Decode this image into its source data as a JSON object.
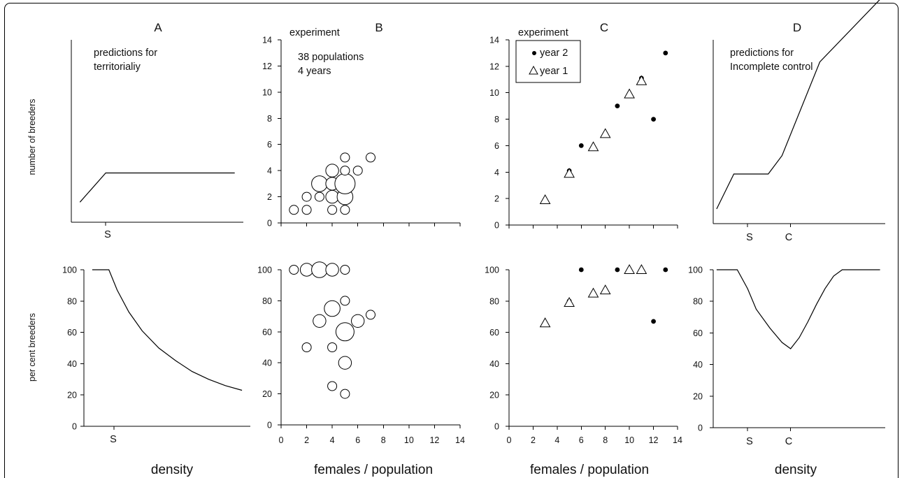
{
  "chart_data": [
    {
      "id": "A_top",
      "panel_label": "A",
      "type": "line",
      "ylabel": "number of breeders",
      "annotation": [
        "predictions for",
        "territorialiy"
      ],
      "marker_labels": [
        "S"
      ],
      "series": [
        {
          "name": "",
          "points": [
            [
              0.05,
              0.11
            ],
            [
              0.2,
              0.27
            ],
            [
              0.95,
              0.27
            ]
          ]
        }
      ]
    },
    {
      "id": "B_top",
      "panel_label": "B",
      "type": "scatter",
      "xlim": [
        0,
        14
      ],
      "ylim": [
        0,
        14
      ],
      "yticks": [
        "0",
        "2",
        "4",
        "6",
        "8",
        "10",
        "12",
        "14"
      ],
      "annotation": [
        "experiment",
        "38 populations",
        "4 years"
      ],
      "points": [
        [
          1,
          1,
          1
        ],
        [
          2,
          1,
          1
        ],
        [
          2,
          2,
          1
        ],
        [
          3,
          2,
          1
        ],
        [
          4,
          1,
          1
        ],
        [
          5,
          1,
          1
        ],
        [
          4,
          2,
          2
        ],
        [
          5,
          2,
          3
        ],
        [
          3,
          3,
          3
        ],
        [
          4,
          3,
          2
        ],
        [
          5,
          3,
          5
        ],
        [
          4,
          4,
          2
        ],
        [
          5,
          4,
          1
        ],
        [
          6,
          4,
          1
        ],
        [
          5,
          5,
          1
        ],
        [
          7,
          5,
          1
        ]
      ]
    },
    {
      "id": "C_top",
      "panel_label": "C",
      "type": "scatter",
      "xlim": [
        0,
        14
      ],
      "ylim": [
        0,
        14
      ],
      "yticks": [
        "0",
        "2",
        "4",
        "6",
        "8",
        "10",
        "12",
        "14"
      ],
      "annotation": [
        "experiment"
      ],
      "legend": {
        "placement": "top-left",
        "entries": [
          "year 2",
          "year 1"
        ]
      },
      "series": [
        {
          "name": "year 2",
          "marker": "dot",
          "points": [
            [
              5,
              4.1
            ],
            [
              6,
              6
            ],
            [
              9,
              9
            ],
            [
              11,
              11.1
            ],
            [
              12,
              8
            ],
            [
              13,
              13
            ]
          ]
        },
        {
          "name": "year 1",
          "marker": "triangle",
          "points": [
            [
              3,
              1.9
            ],
            [
              5,
              3.9
            ],
            [
              7,
              5.9
            ],
            [
              8,
              6.9
            ],
            [
              10,
              9.9
            ],
            [
              11,
              10.9
            ]
          ]
        }
      ]
    },
    {
      "id": "D_top",
      "panel_label": "D",
      "type": "line",
      "annotation": [
        "predictions for",
        "Incomplete control"
      ],
      "marker_labels": [
        "S",
        "C"
      ],
      "series": [
        {
          "name": "",
          "points": [
            [
              0.02,
              0.08
            ],
            [
              0.12,
              0.27
            ],
            [
              0.32,
              0.27
            ],
            [
              0.4,
              0.37
            ],
            [
              0.62,
              0.88
            ],
            [
              0.97,
              1.22
            ]
          ]
        }
      ]
    },
    {
      "id": "A_bottom",
      "type": "line",
      "ylim": [
        0,
        100
      ],
      "yticks": [
        "0",
        "20",
        "40",
        "60",
        "80",
        "100"
      ],
      "ylabel": "per cent breeders",
      "xlabel": "density",
      "marker_labels": [
        "S"
      ],
      "series": [
        {
          "name": "",
          "points": [
            [
              0.05,
              100
            ],
            [
              0.15,
              100
            ],
            [
              0.2,
              87
            ],
            [
              0.27,
              73
            ],
            [
              0.35,
              61
            ],
            [
              0.45,
              50
            ],
            [
              0.55,
              42
            ],
            [
              0.65,
              35
            ],
            [
              0.75,
              30
            ],
            [
              0.85,
              26
            ],
            [
              0.95,
              23
            ]
          ]
        }
      ]
    },
    {
      "id": "B_bottom",
      "type": "scatter",
      "xlim": [
        0,
        14
      ],
      "ylim": [
        0,
        100
      ],
      "xticks": [
        "0",
        "2",
        "4",
        "6",
        "8",
        "10",
        "12",
        "14"
      ],
      "yticks": [
        "0",
        "20",
        "40",
        "60",
        "80",
        "100"
      ],
      "xlabel": "females / population",
      "points": [
        [
          1,
          100,
          1
        ],
        [
          2,
          100,
          2
        ],
        [
          3,
          100,
          3
        ],
        [
          4,
          100,
          2
        ],
        [
          5,
          100,
          1
        ],
        [
          5,
          80,
          1
        ],
        [
          4,
          75,
          3
        ],
        [
          3,
          67,
          2
        ],
        [
          6,
          67,
          2
        ],
        [
          7,
          71,
          1
        ],
        [
          5,
          60,
          4
        ],
        [
          2,
          50,
          1
        ],
        [
          4,
          50,
          1
        ],
        [
          5,
          40,
          2
        ],
        [
          4,
          25,
          1
        ],
        [
          5,
          20,
          1
        ]
      ]
    },
    {
      "id": "C_bottom",
      "type": "scatter",
      "xlim": [
        0,
        14
      ],
      "ylim": [
        0,
        100
      ],
      "xticks": [
        "0",
        "2",
        "4",
        "6",
        "8",
        "10",
        "12",
        "14"
      ],
      "yticks": [
        "0",
        "20",
        "40",
        "60",
        "80",
        "100"
      ],
      "xlabel": "females / population",
      "series": [
        {
          "name": "year 2",
          "marker": "dot",
          "points": [
            [
              5,
              80
            ],
            [
              6,
              100
            ],
            [
              9,
              100
            ],
            [
              11,
              100
            ],
            [
              12,
              67
            ],
            [
              13,
              100
            ]
          ]
        },
        {
          "name": "year 1",
          "marker": "triangle",
          "points": [
            [
              3,
              66
            ],
            [
              5,
              79
            ],
            [
              7,
              85
            ],
            [
              8,
              87
            ],
            [
              10,
              100
            ],
            [
              11,
              100
            ]
          ]
        }
      ]
    },
    {
      "id": "D_bottom",
      "type": "line",
      "ylim": [
        0,
        100
      ],
      "yticks": [
        "0",
        "20",
        "40",
        "60",
        "80",
        "100"
      ],
      "xlabel": "density",
      "marker_labels": [
        "S",
        "C"
      ],
      "series": [
        {
          "name": "",
          "points": [
            [
              0.02,
              100
            ],
            [
              0.14,
              100
            ],
            [
              0.2,
              88
            ],
            [
              0.25,
              75
            ],
            [
              0.33,
              63
            ],
            [
              0.4,
              54
            ],
            [
              0.45,
              50
            ],
            [
              0.5,
              57
            ],
            [
              0.55,
              67
            ],
            [
              0.6,
              78
            ],
            [
              0.65,
              88
            ],
            [
              0.7,
              96
            ],
            [
              0.75,
              100
            ],
            [
              0.97,
              100
            ]
          ]
        }
      ]
    }
  ]
}
